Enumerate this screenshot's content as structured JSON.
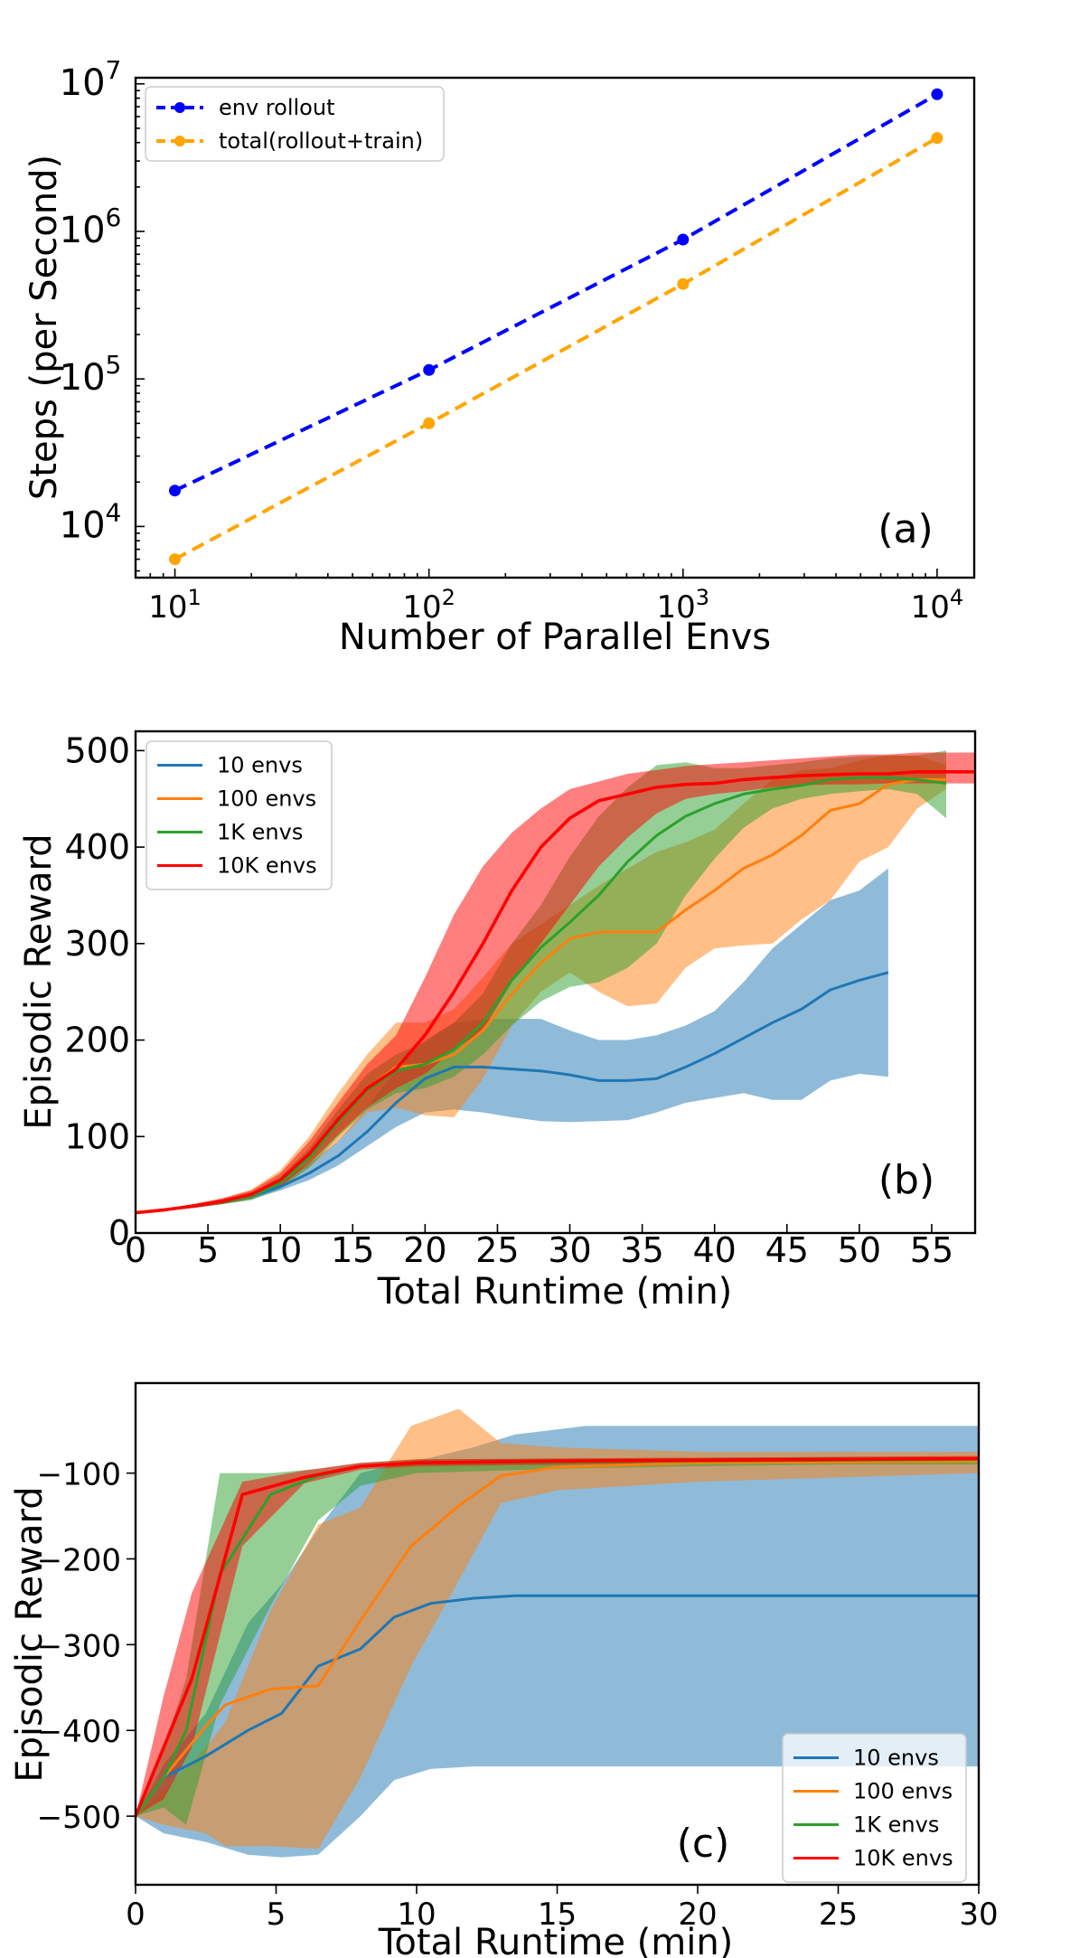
{
  "colors": {
    "blue_dashed": "#0000ff",
    "orange_dashed": "#ffa500",
    "c10": "#1f77b4",
    "c100": "#ff7f0e",
    "c1k": "#2ca02c",
    "c10k": "#ff0000",
    "axis": "#000000"
  },
  "chart_data": [
    {
      "id": "a",
      "type": "line",
      "scale": "log-log",
      "panel_label": "(a)",
      "xlabel": "Number of Parallel Envs",
      "ylabel": "Steps (per Second)",
      "x_ticks": [
        {
          "value": 10,
          "base": "10",
          "exp": "1"
        },
        {
          "value": 100,
          "base": "10",
          "exp": "2"
        },
        {
          "value": 1000,
          "base": "10",
          "exp": "3"
        },
        {
          "value": 10000,
          "base": "10",
          "exp": "4"
        }
      ],
      "y_ticks": [
        {
          "value": 10000,
          "base": "10",
          "exp": "4"
        },
        {
          "value": 100000,
          "base": "10",
          "exp": "5"
        },
        {
          "value": 1000000,
          "base": "10",
          "exp": "6"
        },
        {
          "value": 10000000,
          "base": "10",
          "exp": "7"
        }
      ],
      "xlim": [
        7,
        14000
      ],
      "ylim": [
        4500,
        11000000
      ],
      "legend_position": "top-left",
      "series": [
        {
          "name": "env rollout",
          "color_key": "blue_dashed",
          "x": [
            10,
            100,
            1000,
            10000
          ],
          "y": [
            17500,
            115000,
            880000,
            8500000
          ]
        },
        {
          "name": "total(rollout+train)",
          "color_key": "orange_dashed",
          "x": [
            10,
            100,
            1000,
            10000
          ],
          "y": [
            6000,
            50000,
            440000,
            4300000
          ]
        }
      ]
    },
    {
      "id": "b",
      "type": "area",
      "panel_label": "(b)",
      "xlabel": "Total Runtime (min)",
      "ylabel": "Episodic Reward",
      "xlim": [
        0,
        58
      ],
      "ylim": [
        0,
        520
      ],
      "x_ticks": [
        0,
        5,
        10,
        15,
        20,
        25,
        30,
        35,
        40,
        45,
        50,
        55
      ],
      "y_ticks": [
        0,
        100,
        200,
        300,
        400,
        500
      ],
      "legend_position": "top-left",
      "series": [
        {
          "name": "10 envs",
          "color_key": "c10",
          "x": [
            0,
            2,
            4,
            6,
            8,
            10,
            12,
            14,
            16,
            18,
            20,
            22,
            24,
            26,
            28,
            30,
            32,
            34,
            36,
            38,
            40,
            42,
            44,
            46,
            48,
            50,
            52
          ],
          "y": [
            21,
            24,
            28,
            32,
            38,
            48,
            62,
            80,
            105,
            135,
            160,
            172,
            172,
            170,
            168,
            164,
            158,
            158,
            160,
            172,
            186,
            202,
            218,
            232,
            252,
            262,
            270
          ],
          "lo": [
            21,
            23,
            26,
            30,
            35,
            44,
            55,
            70,
            90,
            110,
            125,
            128,
            125,
            120,
            116,
            115,
            116,
            117,
            125,
            135,
            140,
            145,
            138,
            138,
            158,
            165,
            162
          ],
          "hi": [
            22,
            25,
            30,
            34,
            42,
            55,
            72,
            95,
            130,
            170,
            200,
            218,
            222,
            222,
            222,
            210,
            200,
            200,
            205,
            215,
            230,
            260,
            295,
            320,
            345,
            355,
            378
          ]
        },
        {
          "name": "100 envs",
          "color_key": "c100",
          "x": [
            0,
            2,
            4,
            6,
            8,
            10,
            12,
            14,
            16,
            18,
            20,
            22,
            24,
            26,
            28,
            30,
            32,
            34,
            36,
            38,
            40,
            42,
            44,
            46,
            48,
            50,
            52,
            54,
            56
          ],
          "y": [
            21,
            24,
            28,
            33,
            40,
            55,
            80,
            115,
            150,
            172,
            175,
            185,
            210,
            248,
            280,
            305,
            312,
            312,
            312,
            335,
            355,
            378,
            392,
            412,
            438,
            445,
            465,
            470,
            470
          ],
          "lo": [
            21,
            23,
            26,
            30,
            36,
            48,
            68,
            95,
            125,
            130,
            122,
            120,
            160,
            215,
            250,
            270,
            250,
            235,
            238,
            275,
            295,
            298,
            300,
            325,
            345,
            385,
            400,
            440,
            460
          ],
          "hi": [
            22,
            25,
            30,
            36,
            45,
            65,
            100,
            145,
            185,
            218,
            218,
            232,
            265,
            300,
            320,
            340,
            360,
            378,
            395,
            405,
            418,
            445,
            470,
            480,
            482,
            490,
            495,
            495,
            485
          ]
        },
        {
          "name": "1K envs",
          "color_key": "c1k",
          "x": [
            0,
            2,
            4,
            6,
            8,
            10,
            12,
            14,
            16,
            18,
            20,
            22,
            24,
            26,
            28,
            30,
            32,
            34,
            36,
            38,
            40,
            42,
            44,
            46,
            48,
            50,
            52,
            54,
            56
          ],
          "y": [
            21,
            24,
            28,
            32,
            38,
            52,
            78,
            115,
            148,
            168,
            175,
            190,
            218,
            262,
            296,
            322,
            350,
            385,
            412,
            432,
            445,
            455,
            460,
            464,
            470,
            472,
            472,
            470,
            466
          ],
          "lo": [
            21,
            23,
            26,
            30,
            34,
            46,
            68,
            100,
            128,
            145,
            150,
            162,
            185,
            215,
            240,
            255,
            260,
            275,
            300,
            350,
            388,
            420,
            440,
            450,
            455,
            458,
            460,
            455,
            430
          ],
          "hi": [
            22,
            25,
            30,
            34,
            42,
            58,
            88,
            128,
            165,
            185,
            198,
            218,
            248,
            300,
            340,
            390,
            432,
            462,
            485,
            488,
            482,
            482,
            485,
            488,
            492,
            494,
            495,
            495,
            500
          ]
        },
        {
          "name": "10K envs",
          "color_key": "c10k",
          "x": [
            0,
            2,
            4,
            6,
            8,
            10,
            12,
            14,
            16,
            18,
            20,
            22,
            24,
            26,
            28,
            30,
            32,
            34,
            36,
            38,
            40,
            42,
            44,
            46,
            48,
            50,
            52,
            54,
            56,
            58
          ],
          "y": [
            21,
            24,
            28,
            33,
            40,
            55,
            82,
            118,
            150,
            170,
            205,
            250,
            300,
            355,
            400,
            430,
            448,
            455,
            462,
            465,
            466,
            470,
            472,
            474,
            475,
            476,
            476,
            478,
            478,
            478
          ],
          "lo": [
            21,
            23,
            26,
            30,
            36,
            48,
            72,
            102,
            130,
            150,
            165,
            190,
            210,
            260,
            300,
            340,
            380,
            410,
            435,
            450,
            455,
            458,
            462,
            464,
            465,
            465,
            466,
            466,
            466,
            466
          ],
          "hi": [
            22,
            25,
            30,
            36,
            44,
            62,
            95,
            135,
            175,
            205,
            265,
            330,
            380,
            415,
            440,
            460,
            468,
            476,
            480,
            484,
            486,
            488,
            490,
            492,
            494,
            496,
            496,
            498,
            498,
            498
          ]
        }
      ]
    },
    {
      "id": "c",
      "type": "area",
      "panel_label": "(c)",
      "xlabel": "Total Runtime (min)",
      "ylabel": "Episodic Reward",
      "xlim": [
        0,
        30
      ],
      "ylim": [
        -580,
        5
      ],
      "x_ticks": [
        0,
        5,
        10,
        15,
        20,
        25,
        30
      ],
      "y_ticks": [
        -500,
        -400,
        -300,
        -200,
        -100
      ],
      "y_tick_labels": [
        "−500",
        "−400",
        "−300",
        "−200",
        "−100"
      ],
      "legend_position": "bottom-right",
      "series": [
        {
          "name": "10 envs",
          "color_key": "c10",
          "x": [
            0,
            1,
            2.5,
            4,
            5.2,
            6.5,
            8,
            9.2,
            10.5,
            12,
            13.5,
            16,
            20,
            25,
            30
          ],
          "y": [
            -500,
            -455,
            -430,
            -400,
            -380,
            -325,
            -305,
            -268,
            -252,
            -246,
            -243,
            -243,
            -243,
            -243,
            -243
          ],
          "lo": [
            -500,
            -520,
            -530,
            -545,
            -548,
            -545,
            -500,
            -458,
            -445,
            -442,
            -442,
            -442,
            -442,
            -442,
            -442
          ],
          "hi": [
            -500,
            -440,
            -380,
            -275,
            -230,
            -165,
            -100,
            -90,
            -82,
            -70,
            -55,
            -45,
            -45,
            -45,
            -45
          ]
        },
        {
          "name": "100 envs",
          "color_key": "c100",
          "x": [
            0,
            1,
            2.5,
            3.2,
            4.8,
            6.5,
            8,
            9.8,
            11.5,
            13,
            15,
            20,
            25,
            30
          ],
          "y": [
            -500,
            -455,
            -395,
            -370,
            -352,
            -348,
            -272,
            -185,
            -138,
            -103,
            -93,
            -88,
            -87,
            -86
          ],
          "lo": [
            -500,
            -510,
            -520,
            -535,
            -535,
            -538,
            -455,
            -325,
            -225,
            -135,
            -120,
            -110,
            -105,
            -100
          ],
          "hi": [
            -500,
            -470,
            -420,
            -390,
            -260,
            -160,
            -140,
            -45,
            -25,
            -65,
            -70,
            -75,
            -75,
            -75
          ]
        },
        {
          "name": "1K envs",
          "color_key": "c1k",
          "x": [
            0,
            1,
            1.8,
            3,
            4.8,
            6.5,
            8,
            10,
            15,
            20,
            25,
            30
          ],
          "y": [
            -500,
            -455,
            -400,
            -218,
            -125,
            -103,
            -92,
            -88,
            -87,
            -86,
            -85,
            -84
          ],
          "lo": [
            -500,
            -490,
            -510,
            -370,
            -255,
            -155,
            -115,
            -100,
            -95,
            -92,
            -90,
            -90
          ],
          "hi": [
            -500,
            -420,
            -340,
            -100,
            -100,
            -95,
            -88,
            -84,
            -83,
            -82,
            -81,
            -81
          ]
        },
        {
          "name": "10K envs",
          "color_key": "c10k",
          "x": [
            0,
            1,
            2,
            3.8,
            6,
            8,
            10,
            15,
            20,
            25,
            30
          ],
          "y": [
            -500,
            -420,
            -340,
            -125,
            -105,
            -92,
            -88,
            -86,
            -85,
            -84,
            -83
          ],
          "lo": [
            -500,
            -480,
            -420,
            -185,
            -112,
            -96,
            -92,
            -90,
            -88,
            -87,
            -86
          ],
          "hi": [
            -500,
            -360,
            -240,
            -110,
            -97,
            -88,
            -84,
            -83,
            -82,
            -81,
            -80
          ]
        }
      ]
    }
  ]
}
